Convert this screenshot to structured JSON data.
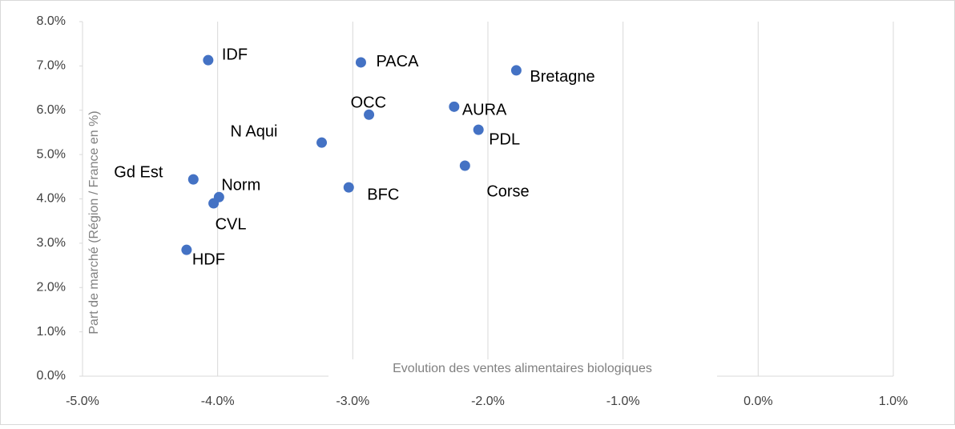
{
  "chart_data": {
    "type": "scatter",
    "xlabel": "Evolution des ventes alimentaires biologiques",
    "ylabel": "Part de marché (Région / France en %)",
    "color": "#4472c4",
    "grid": true,
    "xlim": [
      -5,
      1
    ],
    "ylim": [
      0,
      8
    ],
    "xticks": [
      {
        "value": -5,
        "label": "-5.0%"
      },
      {
        "value": -4,
        "label": "-4.0%"
      },
      {
        "value": -3,
        "label": "-3.0%"
      },
      {
        "value": -2,
        "label": "-2.0%"
      },
      {
        "value": -1,
        "label": "-1.0%"
      },
      {
        "value": 0,
        "label": "0.0%"
      },
      {
        "value": 1,
        "label": "1.0%"
      }
    ],
    "yticks": [
      {
        "value": 0,
        "label": "0.0%"
      },
      {
        "value": 1,
        "label": "1.0%"
      },
      {
        "value": 2,
        "label": "2.0%"
      },
      {
        "value": 3,
        "label": "3.0%"
      },
      {
        "value": 4,
        "label": "4.0%"
      },
      {
        "value": 5,
        "label": "5.0%"
      },
      {
        "value": 6,
        "label": "6.0%"
      },
      {
        "value": 7,
        "label": "7.0%"
      },
      {
        "value": 8,
        "label": "8.0%"
      }
    ],
    "labels": [
      "IDF",
      "PACA",
      "Bretagne",
      "OCC",
      "AURA",
      "PDL",
      "N Aqui",
      "Corse",
      "BFC",
      "Gd Est",
      "Norm",
      "CVL",
      "HDF"
    ],
    "x": [
      -4.07,
      -2.94,
      -1.79,
      -2.88,
      -2.25,
      -2.07,
      -3.23,
      -2.17,
      -3.03,
      -4.18,
      -3.99,
      -4.03,
      -4.23
    ],
    "y": [
      7.13,
      7.08,
      6.9,
      5.9,
      6.08,
      5.56,
      5.27,
      4.75,
      4.26,
      4.44,
      4.04,
      3.9,
      2.85
    ]
  }
}
